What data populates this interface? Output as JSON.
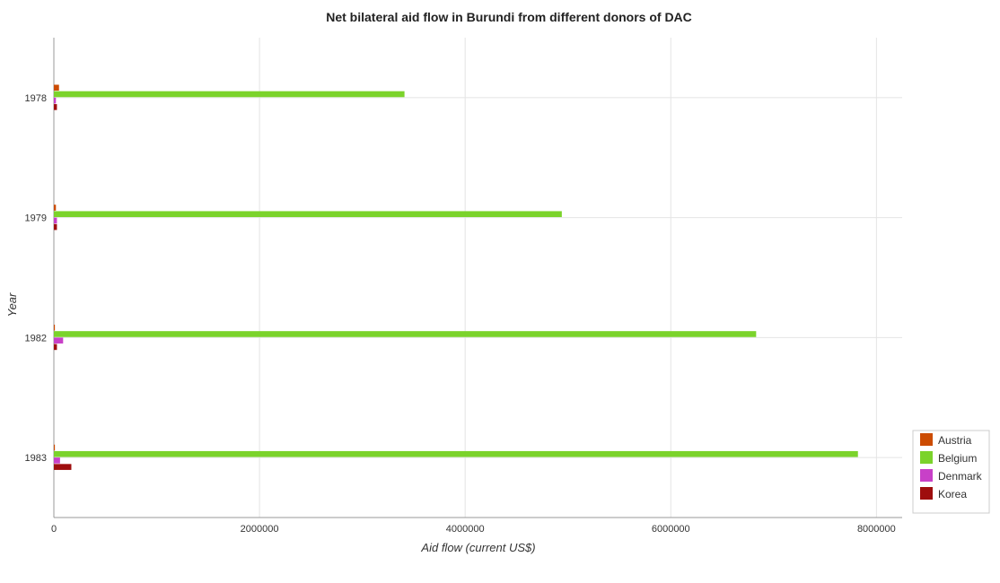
{
  "chart_data": {
    "type": "bar",
    "orientation": "horizontal",
    "title": "Net bilateral aid flow in Burundi from different donors of DAC",
    "xlabel": "Aid flow (current US$)",
    "ylabel": "Year",
    "categories": [
      "1978",
      "1979",
      "1982",
      "1983"
    ],
    "x_ticks": [
      "0",
      "2000000",
      "4000000",
      "6000000",
      "8000000"
    ],
    "xlim": [
      0,
      8250000
    ],
    "grid": true,
    "legend_position": "bottom-right",
    "series": [
      {
        "name": "Austria",
        "color": "#cc4c02",
        "values": [
          50000,
          20000,
          10000,
          10000
        ]
      },
      {
        "name": "Belgium",
        "color": "#7bd32b",
        "values": [
          3410000,
          4940000,
          6830000,
          7820000
        ]
      },
      {
        "name": "Denmark",
        "color": "#c840c8",
        "values": [
          20000,
          30000,
          90000,
          60000
        ]
      },
      {
        "name": "Korea",
        "color": "#9e0e0e",
        "values": [
          30000,
          30000,
          30000,
          170000
        ]
      }
    ]
  }
}
